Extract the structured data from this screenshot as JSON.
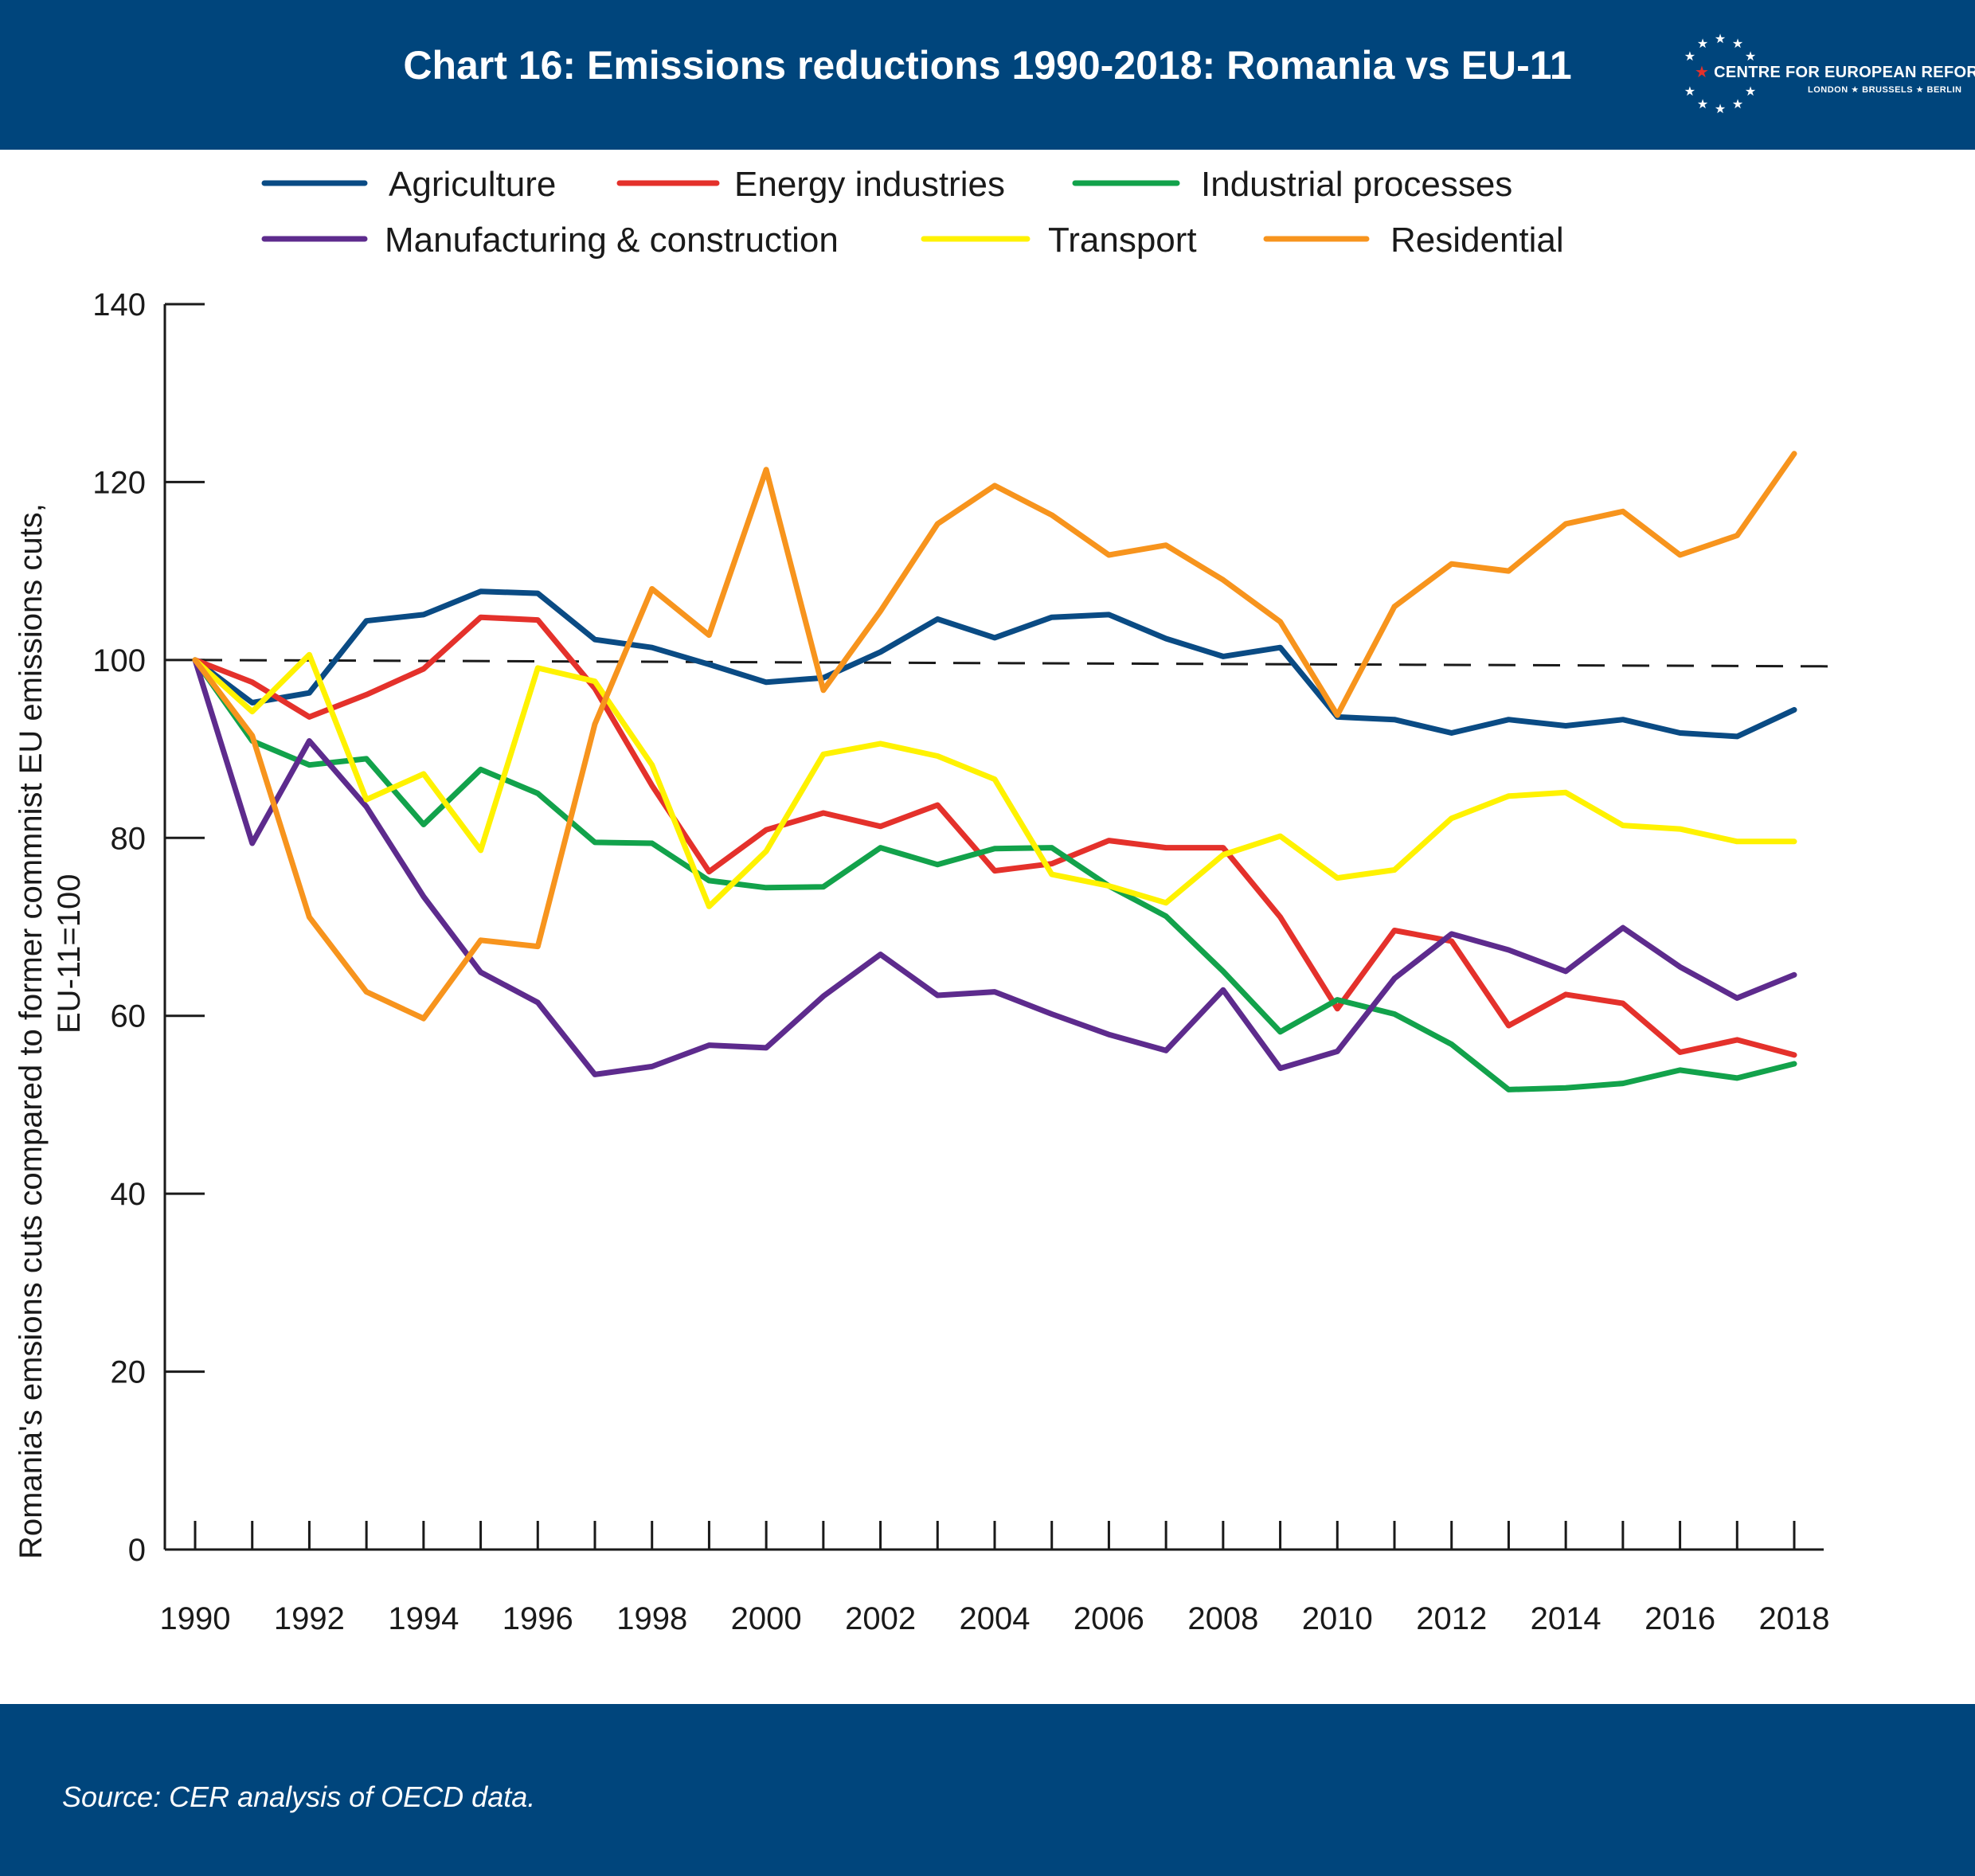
{
  "title": "Chart 16: Emissions reductions 1990-2018: Romania vs EU-11",
  "logo": {
    "name_prefix": "★ ",
    "name": "CENTRE FOR EUROPEAN REFORM",
    "cities": "LONDON ★ BRUSSELS ★ BERLIN"
  },
  "source": "Source: CER analysis of OECD data.",
  "chart_data": {
    "type": "line",
    "ylabel_line1": "Romania's emsions cuts compared to former commnist EU emissions cuts,",
    "ylabel_line2": "EU-11=100",
    "xlabel": "",
    "ylim": [
      0,
      140
    ],
    "yticks": [
      0,
      20,
      40,
      60,
      80,
      100,
      120,
      140
    ],
    "x": [
      1990,
      1991,
      1992,
      1993,
      1994,
      1995,
      1996,
      1997,
      1998,
      1999,
      2000,
      2001,
      2002,
      2003,
      2004,
      2005,
      2006,
      2007,
      2008,
      2009,
      2010,
      2011,
      2012,
      2013,
      2014,
      2015,
      2016,
      2017,
      2018
    ],
    "xticklabels": [
      "1990",
      "1992",
      "1994",
      "1996",
      "1998",
      "2000",
      "2002",
      "2004",
      "2006",
      "2008",
      "2010",
      "2012",
      "2014",
      "2016",
      "2018"
    ],
    "reference_line": {
      "value": 100,
      "style": "dashed",
      "color": "#1a1a1a"
    },
    "legend_position": "top",
    "series": [
      {
        "name": "Agriculture",
        "color": "#0a4b84",
        "values": [
          100,
          95.2,
          96.3,
          104.4,
          105.1,
          107.7,
          107.5,
          102.3,
          101.4,
          99.5,
          97.5,
          98.0,
          100.9,
          104.6,
          102.5,
          104.8,
          105.1,
          102.4,
          100.4,
          101.4,
          93.6,
          93.3,
          91.8,
          93.3,
          92.6,
          93.3,
          91.8,
          91.4,
          94.4
        ]
      },
      {
        "name": "Energy industries",
        "color": "#e4312b",
        "values": [
          100,
          97.5,
          93.6,
          96.1,
          99.0,
          104.8,
          104.5,
          96.8,
          85.9,
          76.2,
          80.9,
          82.8,
          81.3,
          83.7,
          76.3,
          77.1,
          79.7,
          78.9,
          78.9,
          71.1,
          60.8,
          69.6,
          68.4,
          58.9,
          62.4,
          61.4,
          55.9,
          57.3,
          55.6
        ]
      },
      {
        "name": "Industrial processes",
        "color": "#12a24b",
        "values": [
          100,
          90.9,
          88.2,
          88.9,
          81.5,
          87.7,
          85.0,
          79.5,
          79.4,
          75.2,
          74.4,
          74.5,
          78.9,
          77.0,
          78.8,
          78.9,
          74.6,
          71.2,
          65.0,
          58.2,
          61.8,
          60.2,
          56.8,
          51.7,
          51.9,
          52.4,
          53.9,
          53.0,
          54.6
        ]
      },
      {
        "name": "Manufacturing & construction",
        "color": "#5d2b8d",
        "values": [
          100,
          79.4,
          90.9,
          83.5,
          73.4,
          64.9,
          61.5,
          53.4,
          54.3,
          56.7,
          56.4,
          62.2,
          66.9,
          62.3,
          62.7,
          60.2,
          57.9,
          56.1,
          62.9,
          54.1,
          56.0,
          64.2,
          69.2,
          67.4,
          65.0,
          69.9,
          65.5,
          62.0,
          64.6
        ]
      },
      {
        "name": "Transport",
        "color": "#fff200",
        "values": [
          100,
          94.2,
          100.6,
          84.3,
          87.2,
          78.6,
          99.1,
          97.6,
          88.2,
          72.3,
          78.5,
          89.4,
          90.6,
          89.2,
          86.6,
          75.9,
          74.6,
          72.7,
          78.1,
          80.2,
          75.5,
          76.4,
          82.2,
          84.7,
          85.1,
          81.4,
          81.0,
          79.6,
          79.6
        ]
      },
      {
        "name": "Residential",
        "color": "#f7941d",
        "values": [
          100,
          91.5,
          71.1,
          62.7,
          59.7,
          68.5,
          67.8,
          92.8,
          108.0,
          102.8,
          121.4,
          96.6,
          105.5,
          115.3,
          119.6,
          116.3,
          111.8,
          112.9,
          109.0,
          104.3,
          93.8,
          106.0,
          110.8,
          110.0,
          115.3,
          116.7,
          111.8,
          114.0,
          123.2
        ]
      }
    ]
  }
}
